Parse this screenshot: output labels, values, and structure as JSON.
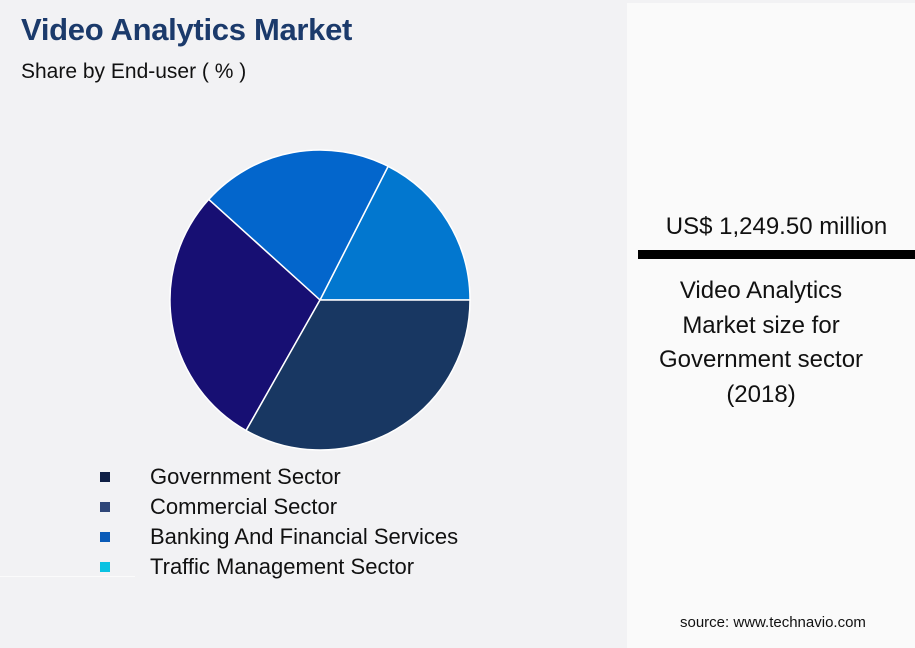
{
  "header": {
    "title": "Video Analytics Market",
    "subtitle": "Share by End-user ( % )"
  },
  "chart_data": {
    "type": "pie",
    "title": "Video Analytics Market",
    "subtitle": "Share by End-user ( % )",
    "categories": [
      "Government Sector",
      "Commercial Sector",
      "Banking And Financial Services",
      "Traffic Management Sector"
    ],
    "values": [
      33.2,
      28.5,
      20.8,
      17.5
    ],
    "slice_colors": [
      "#183762",
      "#170f73",
      "#0366cc",
      "#0277cf"
    ],
    "legend_colors": [
      "#0f1f45",
      "#2f4678",
      "#0a5bb8",
      "#0ac2e2"
    ],
    "legend_position": "bottom",
    "start_angle_deg": 0,
    "direction": "counterclockwise"
  },
  "legend": {
    "items": [
      {
        "label": "Government Sector",
        "color": "#0f1f45"
      },
      {
        "label": "Commercial Sector",
        "color": "#2f4678"
      },
      {
        "label": "Banking And Financial Services",
        "color": "#0a5bb8"
      },
      {
        "label": "Traffic Management Sector",
        "color": "#0ac2e2"
      }
    ]
  },
  "kpi": {
    "value": "US$ 1,249.50 million",
    "description_lines": [
      "Video Analytics",
      "Market size for",
      "Government sector",
      "(2018)"
    ]
  },
  "footer": {
    "source": "source: www.technavio.com"
  }
}
